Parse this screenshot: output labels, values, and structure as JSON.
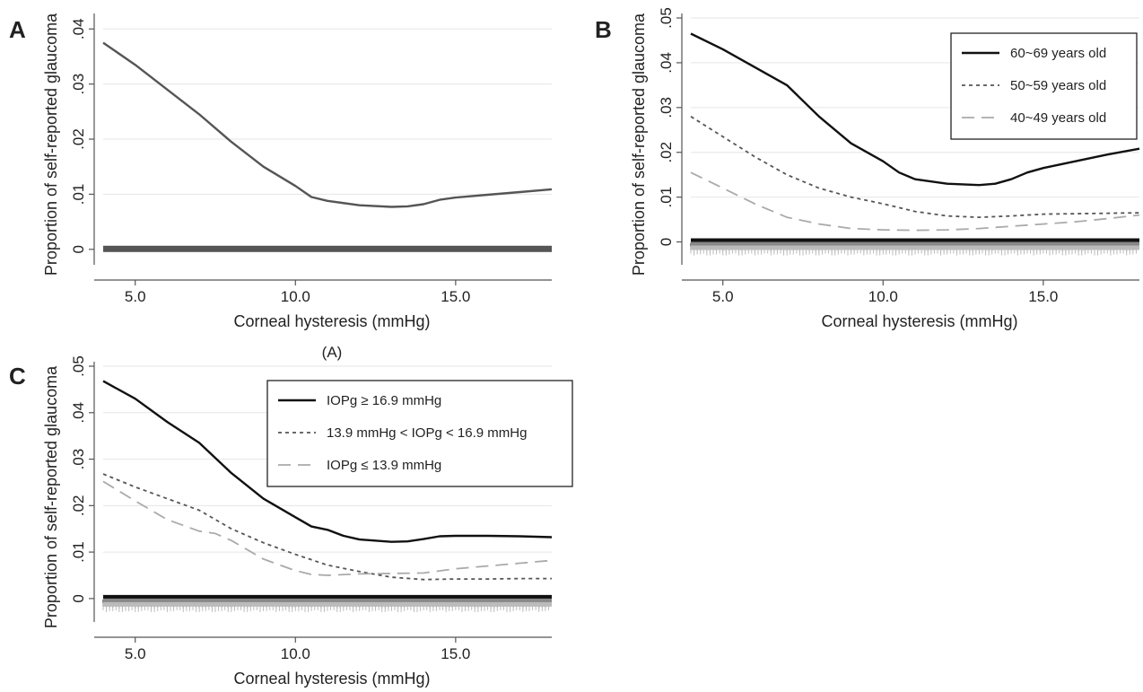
{
  "figure": {
    "colors": {
      "axis": "#555555",
      "grid": "#e6e6e6",
      "series_dark": "#111111",
      "series_mid": "#555555",
      "series_light": "#aaaaaa",
      "rug_dark": "#111111",
      "rug_mid": "#888888",
      "rug_light": "#bbbbbb"
    }
  },
  "chart_data": [
    {
      "panel": "A",
      "type": "line",
      "xlabel": "Corneal hysteresis (mmHg)",
      "ylabel": "Proportion of self-reported glaucoma",
      "caption": "(A)",
      "xlim": [
        4,
        18
      ],
      "ylim": [
        -0.0015,
        0.042
      ],
      "xticks": [
        5,
        10,
        15
      ],
      "xtick_labels": [
        "5.0",
        "10.0",
        "15.0"
      ],
      "yticks": [
        0,
        0.01,
        0.02,
        0.03,
        0.04
      ],
      "ytick_labels": [
        "0",
        ".01",
        ".02",
        ".03",
        ".04"
      ],
      "grid": true,
      "legend": null,
      "series": [
        {
          "style": "solid",
          "color": "#555555",
          "x": [
            4.0,
            5.0,
            6.0,
            7.0,
            8.0,
            9.0,
            10.0,
            10.5,
            11.0,
            12.0,
            13.0,
            13.5,
            14.0,
            14.5,
            15.0,
            16.0,
            17.0,
            18.0
          ],
          "y": [
            0.0375,
            0.0335,
            0.029,
            0.0245,
            0.0195,
            0.015,
            0.0115,
            0.0095,
            0.0088,
            0.008,
            0.0077,
            0.0078,
            0.0082,
            0.009,
            0.0094,
            0.0099,
            0.0104,
            0.0109
          ]
        }
      ],
      "rug": [
        {
          "color": "#555555",
          "x_from": 4.0,
          "x_to": 18.0
        }
      ]
    },
    {
      "panel": "B",
      "type": "line",
      "xlabel": "Corneal hysteresis (mmHg)",
      "ylabel": "Proportion of self-reported glaucoma",
      "xlim": [
        4,
        18
      ],
      "ylim": [
        -0.0035,
        0.05
      ],
      "xticks": [
        5,
        10,
        15
      ],
      "xtick_labels": [
        "5.0",
        "10.0",
        "15.0"
      ],
      "yticks": [
        0,
        0.01,
        0.02,
        0.03,
        0.04,
        0.05
      ],
      "ytick_labels": [
        "0",
        ".01",
        ".02",
        ".03",
        ".04",
        ".05"
      ],
      "grid": true,
      "legend": "top-right",
      "series": [
        {
          "name": "60~69 years old",
          "style": "solid",
          "color": "#111111",
          "x": [
            4.0,
            5.0,
            6.0,
            7.0,
            8.0,
            9.0,
            10.0,
            10.5,
            11.0,
            12.0,
            13.0,
            13.5,
            14.0,
            14.5,
            15.0,
            16.0,
            17.0,
            18.0
          ],
          "y": [
            0.0465,
            0.043,
            0.039,
            0.035,
            0.028,
            0.022,
            0.018,
            0.0155,
            0.014,
            0.013,
            0.0127,
            0.013,
            0.014,
            0.0155,
            0.0165,
            0.018,
            0.0195,
            0.0208
          ]
        },
        {
          "name": "50~59 years old",
          "style": "dotted",
          "color": "#555555",
          "x": [
            4.0,
            5.0,
            6.0,
            7.0,
            8.0,
            9.0,
            10.0,
            11.0,
            12.0,
            13.0,
            14.0,
            15.0,
            16.0,
            17.0,
            18.0
          ],
          "y": [
            0.028,
            0.0235,
            0.019,
            0.015,
            0.012,
            0.01,
            0.0085,
            0.0068,
            0.0058,
            0.0055,
            0.0058,
            0.0062,
            0.0063,
            0.0064,
            0.0065
          ]
        },
        {
          "name": "40~49 years old",
          "style": "dashed",
          "color": "#aaaaaa",
          "x": [
            4.0,
            5.0,
            6.0,
            7.0,
            8.0,
            9.0,
            10.0,
            11.0,
            12.0,
            13.0,
            14.0,
            15.0,
            16.0,
            17.0,
            18.0
          ],
          "y": [
            0.0155,
            0.012,
            0.0085,
            0.0055,
            0.004,
            0.003,
            0.0027,
            0.0026,
            0.0027,
            0.003,
            0.0035,
            0.004,
            0.0045,
            0.0052,
            0.006
          ]
        }
      ],
      "rug": [
        {
          "color": "#111111",
          "x_from": 4.0,
          "x_to": 18.0
        },
        {
          "color": "#888888",
          "x_from": 4.0,
          "x_to": 18.0
        },
        {
          "color": "#bbbbbb",
          "x_from": 4.0,
          "x_to": 18.0
        }
      ]
    },
    {
      "panel": "C",
      "type": "line",
      "xlabel": "Corneal hysteresis (mmHg)",
      "ylabel": "Proportion of self-reported glaucoma",
      "xlim": [
        4,
        18
      ],
      "ylim": [
        -0.0035,
        0.05
      ],
      "xticks": [
        5,
        10,
        15
      ],
      "xtick_labels": [
        "5.0",
        "10.0",
        "15.0"
      ],
      "yticks": [
        0,
        0.01,
        0.02,
        0.03,
        0.04,
        0.05
      ],
      "ytick_labels": [
        "0",
        ".01",
        ".02",
        ".03",
        ".04",
        ".05"
      ],
      "grid": true,
      "legend": "top-right",
      "series": [
        {
          "name": "IOPg ≥ 16.9 mmHg",
          "style": "solid",
          "color": "#111111",
          "x": [
            4.0,
            5.0,
            6.0,
            7.0,
            8.0,
            9.0,
            10.0,
            10.5,
            11.0,
            11.5,
            12.0,
            13.0,
            13.5,
            14.0,
            14.5,
            15.0,
            16.0,
            17.0,
            18.0
          ],
          "y": [
            0.0468,
            0.043,
            0.038,
            0.0335,
            0.027,
            0.0215,
            0.0175,
            0.0155,
            0.0148,
            0.0135,
            0.0127,
            0.0122,
            0.0123,
            0.0128,
            0.0134,
            0.0135,
            0.0135,
            0.0134,
            0.0132
          ]
        },
        {
          "name": "13.9 mmHg < IOPg < 16.9 mmHg",
          "style": "dotted",
          "color": "#555555",
          "x": [
            4.0,
            5.0,
            6.0,
            7.0,
            8.0,
            9.0,
            10.0,
            11.0,
            12.0,
            13.0,
            14.0,
            15.0,
            16.0,
            17.0,
            18.0
          ],
          "y": [
            0.0268,
            0.024,
            0.0215,
            0.019,
            0.015,
            0.012,
            0.0095,
            0.0072,
            0.0058,
            0.0046,
            0.0041,
            0.0042,
            0.0042,
            0.0043,
            0.0043
          ]
        },
        {
          "name": "IOPg ≤ 13.9 mmHg",
          "style": "dashed",
          "color": "#aaaaaa",
          "x": [
            4.0,
            5.0,
            6.0,
            7.0,
            7.5,
            8.0,
            9.0,
            10.0,
            10.5,
            11.0,
            12.0,
            13.0,
            14.0,
            15.0,
            16.0,
            17.0,
            18.0
          ],
          "y": [
            0.0252,
            0.021,
            0.017,
            0.0145,
            0.014,
            0.0125,
            0.0085,
            0.006,
            0.0052,
            0.005,
            0.0053,
            0.0054,
            0.0055,
            0.0064,
            0.007,
            0.0076,
            0.0082
          ]
        }
      ],
      "rug": [
        {
          "color": "#111111",
          "x_from": 4.0,
          "x_to": 18.0
        },
        {
          "color": "#888888",
          "x_from": 4.0,
          "x_to": 18.0
        },
        {
          "color": "#bbbbbb",
          "x_from": 4.0,
          "x_to": 18.0
        }
      ]
    }
  ]
}
